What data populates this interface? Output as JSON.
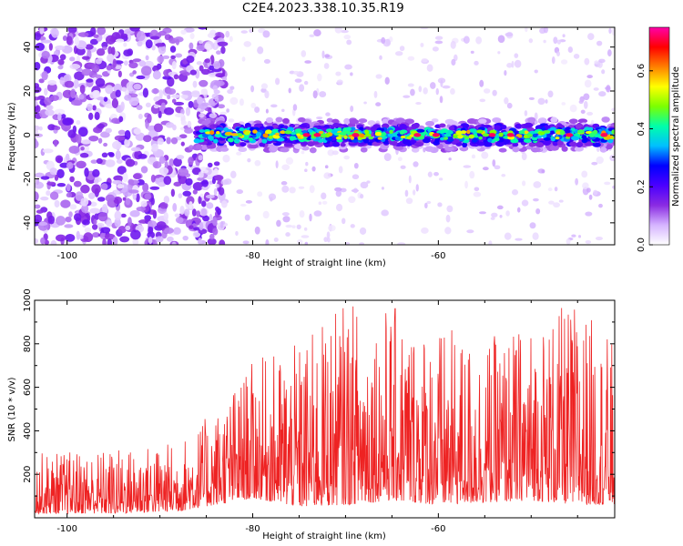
{
  "title": "C2E4.2023.338.10.35.R19",
  "chart_data": [
    {
      "type": "heatmap",
      "xlabel": "Height of straight line (km)",
      "ylabel": "Frequency (Hz)",
      "xlim": [
        -103.5,
        -41
      ],
      "ylim": [
        -50,
        49
      ],
      "xticks": [
        -100,
        -80,
        -60
      ],
      "yticks": [
        -40,
        -20,
        0,
        20,
        40
      ],
      "colorbar": {
        "label": "Normalized spectral amplitude",
        "range": [
          0,
          0.75
        ],
        "ticks": [
          0.0,
          0.2,
          0.4,
          0.6
        ],
        "colors": [
          "#ffffff",
          "#d5b4ff",
          "#8a2be2",
          "#4b00ff",
          "#0000ff",
          "#00bfff",
          "#00ffaa",
          "#7cff00",
          "#ffff00",
          "#ff8000",
          "#ff0000",
          "#ff00aa"
        ]
      },
      "description_regions": [
        {
          "x_range": [
            -103.5,
            -86
          ],
          "freq_range": [
            -50,
            49
          ],
          "level": 0.1
        },
        {
          "x_range": [
            -86,
            -41
          ],
          "freq_range": [
            -5,
            5
          ],
          "level": 0.35,
          "peak_level": 0.72
        }
      ]
    },
    {
      "type": "line",
      "xlabel": "Height of straight line (km)",
      "ylabel": "SNR (10 * v/v)",
      "xlim": [
        -103.5,
        -41
      ],
      "ylim": [
        0,
        1000
      ],
      "xticks": [
        -100,
        -80,
        -60
      ],
      "yticks": [
        200,
        400,
        600,
        800,
        1000
      ],
      "series": [
        {
          "color": "#ee2222",
          "envelope": [
            {
              "x": -103.5,
              "low": 20,
              "high": 300
            },
            {
              "x": -95,
              "low": 20,
              "high": 320
            },
            {
              "x": -88,
              "low": 30,
              "high": 350
            },
            {
              "x": -84,
              "low": 60,
              "high": 500
            },
            {
              "x": -80,
              "low": 90,
              "high": 720
            },
            {
              "x": -75,
              "low": 50,
              "high": 800
            },
            {
              "x": -70,
              "low": 60,
              "high": 1000
            },
            {
              "x": -65,
              "low": 80,
              "high": 980
            },
            {
              "x": -60,
              "low": 60,
              "high": 880
            },
            {
              "x": -55,
              "low": 70,
              "high": 820
            },
            {
              "x": -50,
              "low": 80,
              "high": 900
            },
            {
              "x": -45,
              "low": 60,
              "high": 1000
            },
            {
              "x": -41,
              "low": 60,
              "high": 800
            }
          ]
        }
      ]
    }
  ]
}
